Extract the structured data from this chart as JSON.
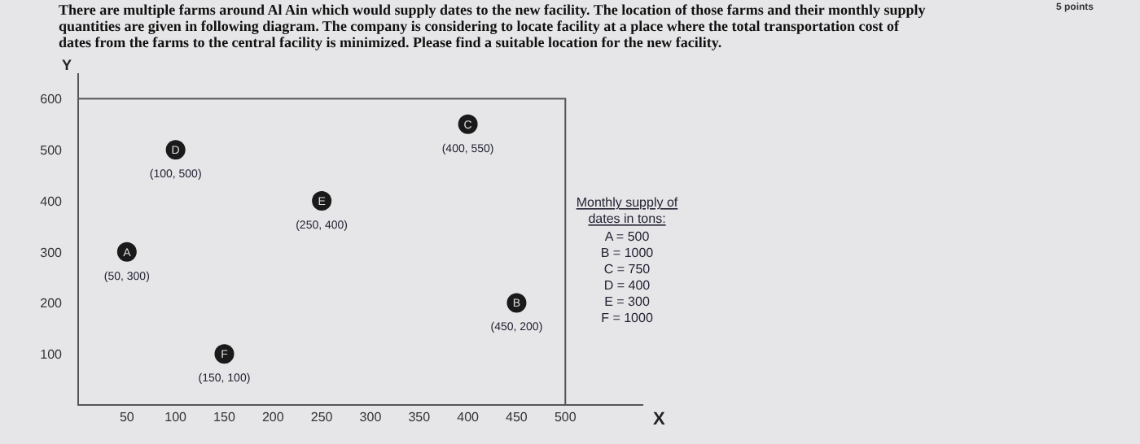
{
  "chart_data": {
    "type": "scatter",
    "title": "There are multiple farms around Al Ain which would supply dates to the new facility. The location of those farms and their monthly supply quantities are given in following diagram. The company is considering to locate facility at a place where the total transportation cost of dates from the farms to the central facility is minimized. Please find a suitable location for the new facility.",
    "xlabel": "X",
    "ylabel": "Y",
    "x": [
      50,
      100,
      150,
      250,
      400,
      450
    ],
    "series": [
      {
        "color": "#1a1a1a",
        "values": [
          300,
          500,
          100,
          400,
          550,
          200
        ],
        "value_labels": [
          "(50, 300)",
          "(100, 500)",
          "(150, 100)",
          "(250, 400)",
          "(400, 550)",
          "(450, 200)"
        ]
      }
    ],
    "marker": "circle",
    "grid": false,
    "xlim": [
      0,
      580
    ],
    "ylim": [
      0,
      650
    ],
    "xticks": [
      50,
      100,
      150,
      200,
      250,
      300,
      350,
      400,
      450,
      500
    ],
    "yticks": [
      100,
      200,
      300,
      400,
      500,
      600
    ],
    "annotations": [
      {
        "text": "A",
        "x": 50,
        "y": 300
      },
      {
        "text": "D",
        "x": 100,
        "y": 500
      },
      {
        "text": "F",
        "x": 150,
        "y": 100
      },
      {
        "text": "E",
        "x": 250,
        "y": 400
      },
      {
        "text": "C",
        "x": 400,
        "y": 550
      },
      {
        "text": "B",
        "x": 450,
        "y": 200
      },
      "Monthly supply of dates in tons:",
      "A = 500",
      "B = 1000",
      "C = 750",
      "D = 400",
      "E = 300",
      "F = 1000",
      "5 points"
    ]
  }
}
